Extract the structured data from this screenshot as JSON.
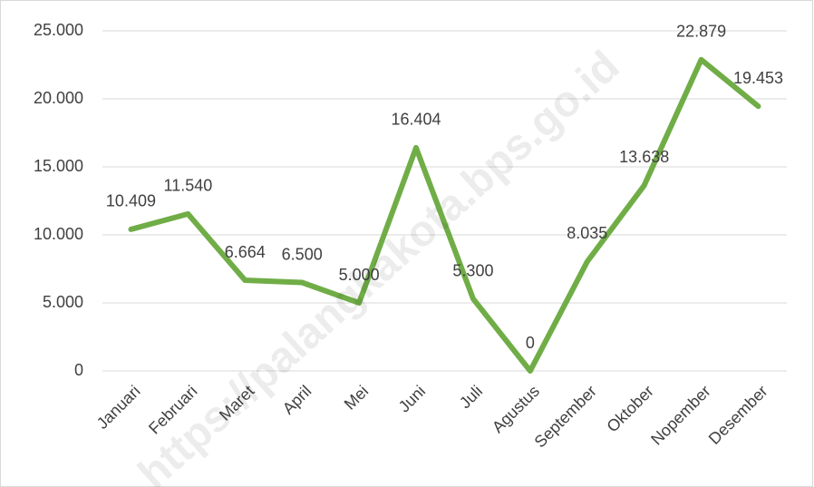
{
  "chart_data": {
    "type": "line",
    "categories": [
      "Januari",
      "Februari",
      "Maret",
      "April",
      "Mei",
      "Juni",
      "Juli",
      "Agustus",
      "September",
      "Oktober",
      "Nopember",
      "Desember"
    ],
    "values": [
      10409,
      11540,
      6664,
      6500,
      5000,
      16404,
      5300,
      0,
      8035,
      13638,
      22879,
      19453
    ],
    "value_labels": [
      "10.409",
      "11.540",
      "6.664",
      "6.500",
      "5.000",
      "16.404",
      "5.300",
      "0",
      "8.035",
      "13.638",
      "22.879",
      "19.453"
    ],
    "color": "#70ad47",
    "ylim": [
      0,
      25000
    ],
    "yticks": [
      0,
      {
        "value": 5000,
        "label": "5.000"
      },
      {
        "value": 10000,
        "label": "10.000"
      },
      {
        "value": 15000,
        "label": "15.000"
      },
      {
        "value": 20000,
        "label": "20.000"
      },
      {
        "value": 25000,
        "label": "25.000"
      }
    ],
    "grid": true,
    "watermark": "https://palangkakota.bps.go.id"
  }
}
